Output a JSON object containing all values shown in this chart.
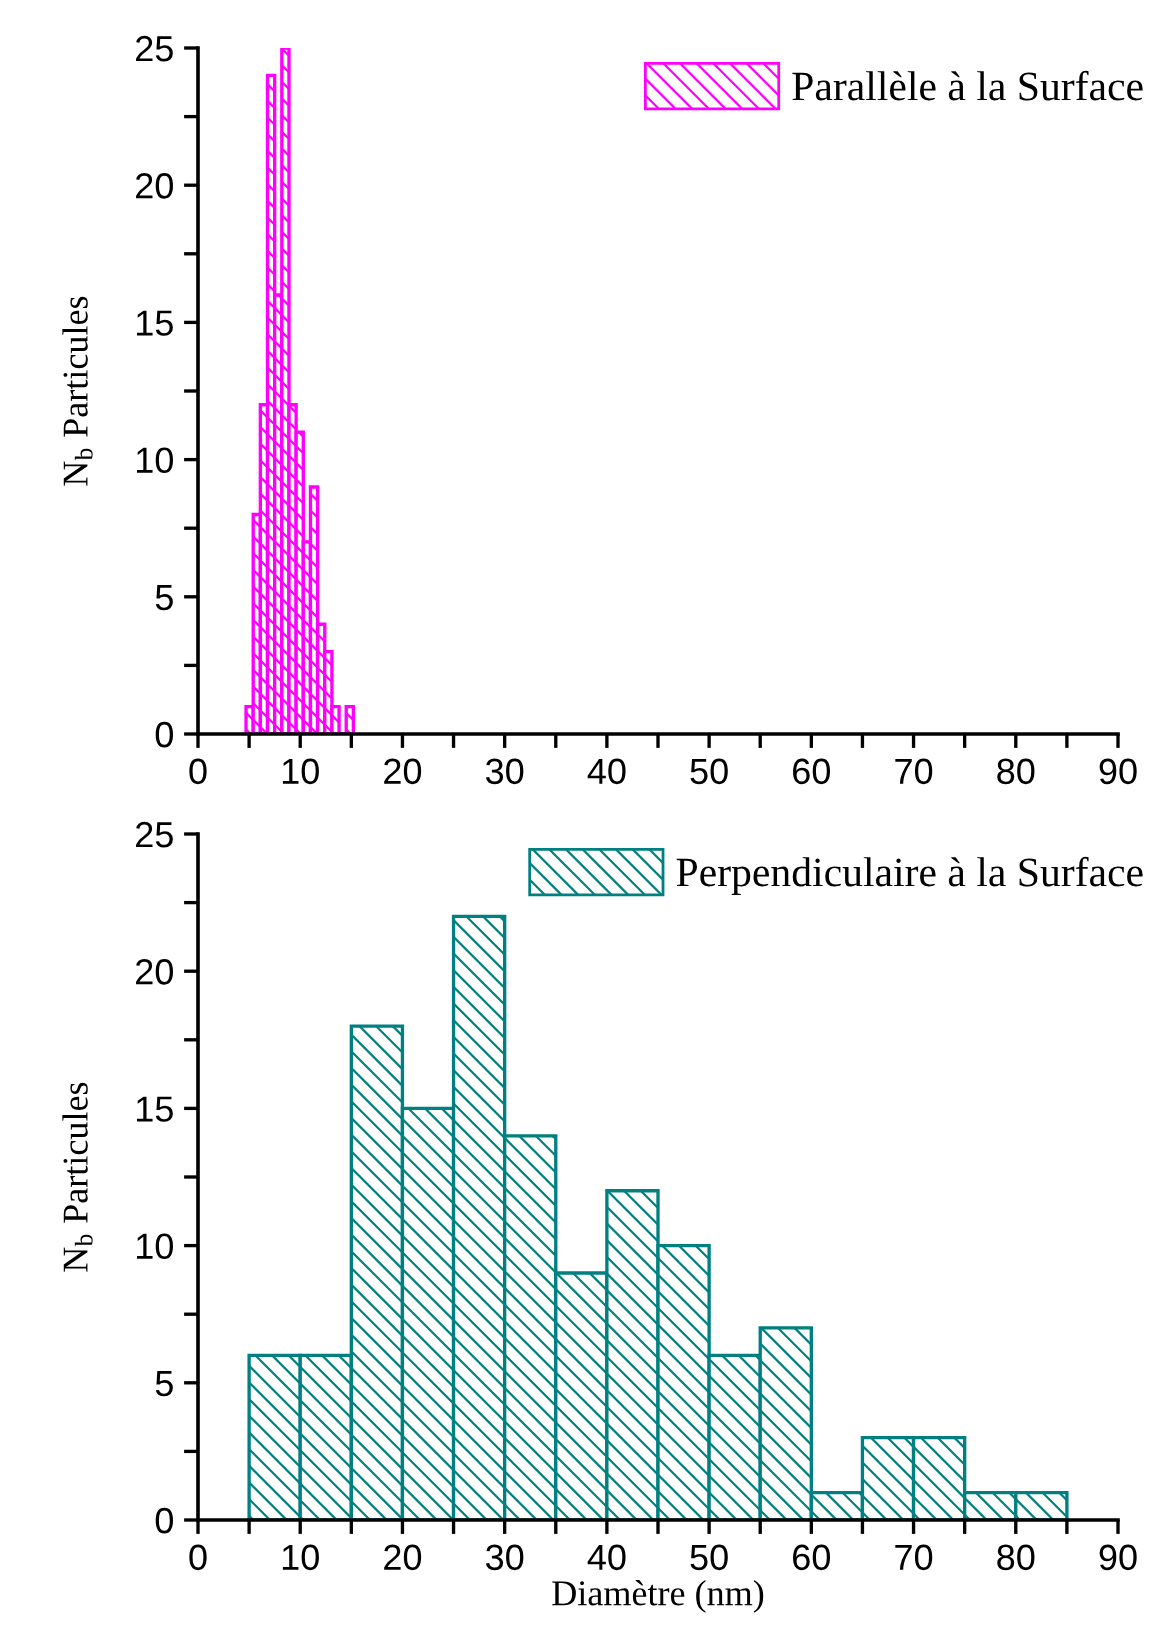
{
  "chart_data": [
    {
      "type": "histogram",
      "ylabel": "N$_{b}$ Particules",
      "bins": [
        4.7,
        5.4,
        6.1,
        6.8,
        7.5,
        8.2,
        8.9,
        9.6,
        10.3,
        11.0,
        11.7,
        12.4,
        13.1,
        13.8,
        14.5,
        15.2
      ],
      "series": [
        {
          "name": "Parallèle à la Surface",
          "color": "#ff00ff",
          "values": [
            1,
            8,
            12,
            24,
            16,
            25,
            12,
            11,
            7,
            9,
            4,
            3,
            1,
            0,
            1
          ]
        }
      ],
      "xlim": [
        0,
        90
      ],
      "ylim": [
        0,
        25
      ],
      "xticks": [
        0,
        {
          "value": 5,
          "label": null
        },
        10,
        {
          "value": 15,
          "label": null
        },
        20,
        {
          "value": 25,
          "label": null
        },
        30,
        {
          "value": 35,
          "label": null
        },
        40,
        {
          "value": 45,
          "label": null
        },
        50,
        {
          "value": 55,
          "label": null
        },
        60,
        {
          "value": 65,
          "label": null
        },
        70,
        {
          "value": 75,
          "label": null
        },
        80,
        {
          "value": 85,
          "label": null
        },
        90
      ],
      "yticks": [
        0,
        {
          "value": 2.5,
          "label": null
        },
        5,
        {
          "value": 7.5,
          "label": null
        },
        10,
        {
          "value": 12.5,
          "label": null
        },
        15,
        {
          "value": 17.5,
          "label": null
        },
        20,
        {
          "value": 22.5,
          "label": null
        },
        25
      ],
      "legend": "top right",
      "grid": false
    },
    {
      "type": "histogram",
      "xlabel": "Diamètre (nm)",
      "ylabel": "N$_{b}$ Particules",
      "bins": [
        5,
        10,
        15,
        20,
        25,
        30,
        35,
        40,
        45,
        50,
        55,
        60,
        65,
        70,
        75,
        80,
        85
      ],
      "series": [
        {
          "name": "Perpendiculaire à la Surface",
          "color": "#008080",
          "values": [
            6,
            6,
            18,
            15,
            22,
            14,
            9,
            12,
            10,
            6,
            7,
            1,
            3,
            3,
            1,
            1
          ]
        }
      ],
      "xlim": [
        0,
        90
      ],
      "ylim": [
        0,
        25
      ],
      "xticks": [
        0,
        {
          "value": 5,
          "label": null
        },
        10,
        {
          "value": 15,
          "label": null
        },
        20,
        {
          "value": 25,
          "label": null
        },
        30,
        {
          "value": 35,
          "label": null
        },
        40,
        {
          "value": 45,
          "label": null
        },
        50,
        {
          "value": 55,
          "label": null
        },
        60,
        {
          "value": 65,
          "label": null
        },
        70,
        {
          "value": 75,
          "label": null
        },
        80,
        {
          "value": 85,
          "label": null
        },
        90
      ],
      "yticks": [
        0,
        {
          "value": 2.5,
          "label": null
        },
        5,
        {
          "value": 7.5,
          "label": null
        },
        10,
        {
          "value": 12.5,
          "label": null
        },
        15,
        {
          "value": 17.5,
          "label": null
        },
        20,
        {
          "value": 22.5,
          "label": null
        },
        25
      ],
      "legend": "top right",
      "grid": false
    }
  ]
}
